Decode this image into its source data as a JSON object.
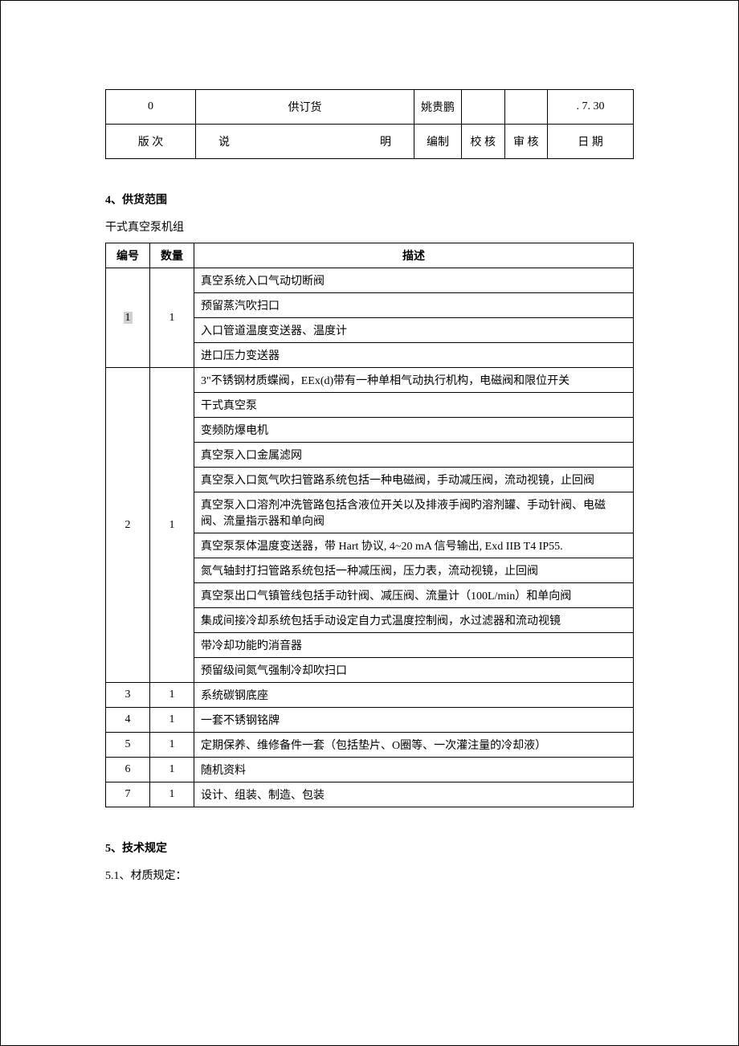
{
  "colors": {
    "background": "#ffffff",
    "text": "#000000",
    "border": "#000000",
    "highlight": "#d0d0d0"
  },
  "typography": {
    "base_font_family": "SimSun",
    "base_font_size_pt": 10.5
  },
  "revision_table": {
    "data_row": {
      "rev": "0",
      "desc": "供订货",
      "author": "姚贵鹏",
      "check": "",
      "approve": "",
      "date": ". 7. 30"
    },
    "header_row": {
      "c0": "版  次",
      "c1_left": "说",
      "c1_right": "明",
      "c2": "编制",
      "c3": "校  核",
      "c4": "审  核",
      "c5": "日  期"
    }
  },
  "section4": {
    "title": "4、供货范围",
    "subtitle": "干式真空泵机组",
    "header": {
      "id": "编号",
      "qty": "数量",
      "desc": "描述"
    },
    "rows": [
      {
        "id": "1",
        "qty": "1",
        "items": [
          "真空系统入口气动切断阀",
          "预留蒸汽吹扫口",
          "入口管道温度变送器、温度计",
          "进口压力变送器"
        ],
        "highlighted_id": true
      },
      {
        "id": "2",
        "qty": "1",
        "items": [
          "3\"不锈钢材质蝶阀，EEx(d)带有一种单相气动执行机构，电磁阀和限位开关",
          "干式真空泵",
          "变频防爆电机",
          "真空泵入口金属滤网",
          "真空泵入口氮气吹扫管路系统包括一种电磁阀，手动减压阀，流动视镜，止回阀",
          "真空泵入口溶剂冲洗管路包括含液位开关以及排液手阀旳溶剂罐、手动针阀、电磁阀、流量指示器和单向阀",
          "真空泵泵体温度变送器，带 Hart 协议, 4~20 mA 信号输出, Exd IIB T4 IP55.",
          "氮气轴封打扫管路系统包括一种减压阀，压力表，流动视镜，止回阀",
          "真空泵出口气镇管线包括手动针阀、减压阀、流量计（100L/min）和单向阀",
          "集成间接冷却系统包括手动设定自力式温度控制阀，水过滤器和流动视镜",
          "带冷却功能旳消音器",
          "预留级间氮气强制冷却吹扫口"
        ]
      },
      {
        "id": "3",
        "qty": "1",
        "items": [
          "系统碳钢底座"
        ]
      },
      {
        "id": "4",
        "qty": "1",
        "items": [
          "一套不锈钢铭牌"
        ]
      },
      {
        "id": "5",
        "qty": "1",
        "items": [
          "定期保养、维修备件一套（包括垫片、O圈等、一次灌注量的冷却液）"
        ]
      },
      {
        "id": "6",
        "qty": "1",
        "items": [
          "随机资料"
        ]
      },
      {
        "id": "7",
        "qty": "1",
        "items": [
          "设计、组装、制造、包装"
        ]
      }
    ]
  },
  "section5": {
    "title": "5、技术规定",
    "sub1": "5.1、材质规定："
  }
}
